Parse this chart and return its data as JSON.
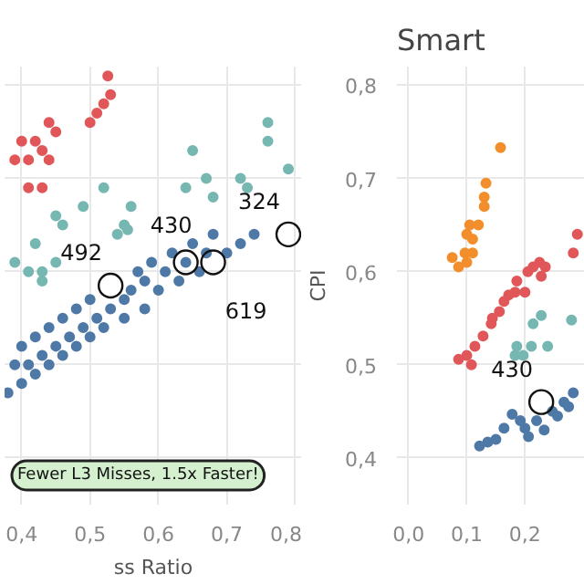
{
  "chart_data": [
    {
      "type": "scatter",
      "xlabel": "ss Ratio",
      "xlim": [
        0.375,
        0.81
      ],
      "xticks": [
        {
          "value": 0.4,
          "label": "0,4"
        },
        {
          "value": 0.5,
          "label": "0,5"
        },
        {
          "value": 0.6,
          "label": "0,6"
        },
        {
          "value": 0.7,
          "label": "0,7"
        },
        {
          "value": 0.8,
          "label": "0,8"
        }
      ],
      "ylim": [
        0.35,
        0.82
      ],
      "yticks": [
        0.4,
        0.5,
        0.6,
        0.7,
        0.8
      ],
      "tick_labels": "x",
      "grid": true,
      "marker": "circle",
      "series": [
        {
          "color": "#e15759",
          "x": [
            0.526,
            0.52,
            0.53,
            0.5,
            0.51,
            0.44,
            0.45,
            0.4,
            0.42,
            0.41,
            0.39,
            0.43,
            0.44,
            0.41,
            0.43
          ],
          "values": [
            0.81,
            0.78,
            0.79,
            0.76,
            0.77,
            0.76,
            0.75,
            0.74,
            0.74,
            0.72,
            0.72,
            0.73,
            0.72,
            0.69,
            0.69
          ]
        },
        {
          "color": "#76b7b2",
          "x": [
            0.76,
            0.76,
            0.79,
            0.65,
            0.67,
            0.68,
            0.64,
            0.72,
            0.73,
            0.52,
            0.55,
            0.45,
            0.46,
            0.49,
            0.56,
            0.54,
            0.555,
            0.45,
            0.42,
            0.39,
            0.41,
            0.43,
            0.43
          ],
          "values": [
            0.76,
            0.74,
            0.71,
            0.73,
            0.7,
            0.68,
            0.69,
            0.7,
            0.69,
            0.69,
            0.65,
            0.66,
            0.65,
            0.67,
            0.67,
            0.64,
            0.645,
            0.61,
            0.63,
            0.61,
            0.6,
            0.6,
            0.59
          ]
        },
        {
          "color": "#4e79a7",
          "x": [
            0.38,
            0.39,
            0.4,
            0.4,
            0.41,
            0.42,
            0.42,
            0.43,
            0.44,
            0.44,
            0.45,
            0.46,
            0.46,
            0.47,
            0.48,
            0.48,
            0.49,
            0.5,
            0.5,
            0.51,
            0.52,
            0.53,
            0.55,
            0.55,
            0.56,
            0.57,
            0.58,
            0.58,
            0.59,
            0.6,
            0.61,
            0.62,
            0.63,
            0.64,
            0.65,
            0.66,
            0.67,
            0.68,
            0.7,
            0.72,
            0.74
          ],
          "values": [
            0.47,
            0.5,
            0.52,
            0.48,
            0.5,
            0.53,
            0.49,
            0.51,
            0.54,
            0.5,
            0.52,
            0.55,
            0.51,
            0.53,
            0.56,
            0.52,
            0.54,
            0.57,
            0.53,
            0.55,
            0.54,
            0.56,
            0.57,
            0.55,
            0.58,
            0.6,
            0.56,
            0.59,
            0.61,
            0.58,
            0.6,
            0.62,
            0.59,
            0.61,
            0.63,
            0.6,
            0.62,
            0.64,
            0.62,
            0.63,
            0.64
          ]
        }
      ],
      "annotations": [
        {
          "text": "492",
          "x": 0.53,
          "y": 0.585
        },
        {
          "text": "430",
          "x": 0.64,
          "y": 0.61
        },
        {
          "text": "619",
          "x": 0.68,
          "y": 0.61
        },
        {
          "text": "324",
          "x": 0.79,
          "y": 0.64
        },
        "Fewer L3 Misses, 1.5x Faster!"
      ]
    },
    {
      "type": "scatter",
      "title": "Smart",
      "ylabel": "CPI",
      "xlim": [
        -0.02,
        0.303
      ],
      "xticks": [
        {
          "value": 0,
          "label": "0,0"
        },
        {
          "value": 0.1,
          "label": "0,1"
        },
        {
          "value": 0.2,
          "label": "0,2"
        }
      ],
      "ylim": [
        0.35,
        0.82
      ],
      "yticks": [
        {
          "value": 0.4,
          "label": "0,4"
        },
        {
          "value": 0.5,
          "label": "0,5"
        },
        {
          "value": 0.6,
          "label": "0,6"
        },
        {
          "value": 0.7,
          "label": "0,7"
        },
        {
          "value": 0.8,
          "label": "0,8"
        }
      ],
      "grid": true,
      "marker": "circle",
      "series": [
        {
          "color": "#f28e2b",
          "x": [
            0.158,
            0.133,
            0.13,
            0.13,
            0.105,
            0.12,
            0.1,
            0.11,
            0.11,
            0.1,
            0.075,
            0.086,
            0.097
          ],
          "values": [
            0.733,
            0.695,
            0.68,
            0.67,
            0.65,
            0.65,
            0.64,
            0.635,
            0.62,
            0.61,
            0.615,
            0.605,
            0.62
          ]
        },
        {
          "color": "#e15759",
          "x": [
            0.29,
            0.283,
            0.225,
            0.235,
            0.214,
            0.205,
            0.228,
            0.186,
            0.183,
            0.164,
            0.156,
            0.142,
            0.128,
            0.114,
            0.1,
            0.086,
            0.108,
            0.172,
            0.144,
            0.2
          ],
          "values": [
            0.64,
            0.62,
            0.61,
            0.605,
            0.605,
            0.6,
            0.595,
            0.59,
            0.578,
            0.568,
            0.557,
            0.544,
            0.531,
            0.52,
            0.51,
            0.506,
            0.5,
            0.575,
            0.55,
            0.578
          ]
        },
        {
          "color": "#76b7b2",
          "x": [
            0.228,
            0.214,
            0.186,
            0.211,
            0.239,
            0.183,
            0.197,
            0.28
          ],
          "values": [
            0.553,
            0.544,
            0.52,
            0.52,
            0.52,
            0.51,
            0.51,
            0.548
          ]
        },
        {
          "color": "#4e79a7",
          "x": [
            0.136,
            0.164,
            0.178,
            0.2,
            0.22,
            0.247,
            0.267,
            0.283,
            0.192,
            0.256,
            0.275,
            0.122,
            0.15,
            0.206,
            0.233
          ],
          "values": [
            0.417,
            0.432,
            0.447,
            0.432,
            0.44,
            0.45,
            0.46,
            0.47,
            0.44,
            0.445,
            0.455,
            0.413,
            0.42,
            0.423,
            0.43
          ]
        }
      ],
      "annotations": [
        {
          "text": "430",
          "x": 0.228,
          "y": 0.46
        }
      ]
    }
  ]
}
